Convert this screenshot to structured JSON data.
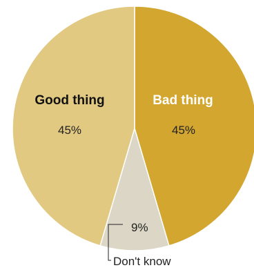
{
  "chart_data": {
    "type": "pie",
    "title": "",
    "slices": [
      {
        "label": "Bad thing",
        "value": 45,
        "display": "45%",
        "color": "#d3a630",
        "label_color": "#ffffff",
        "value_color": "#222222"
      },
      {
        "label": "Don't know",
        "value": 9,
        "display": "9%",
        "color": "#dbd6c5",
        "label_color": "#222222",
        "value_color": "#222222"
      },
      {
        "label": "Good thing",
        "value": 45,
        "display": "45%",
        "color": "#e2c981",
        "label_color": "#111111",
        "value_color": "#222222"
      }
    ]
  }
}
